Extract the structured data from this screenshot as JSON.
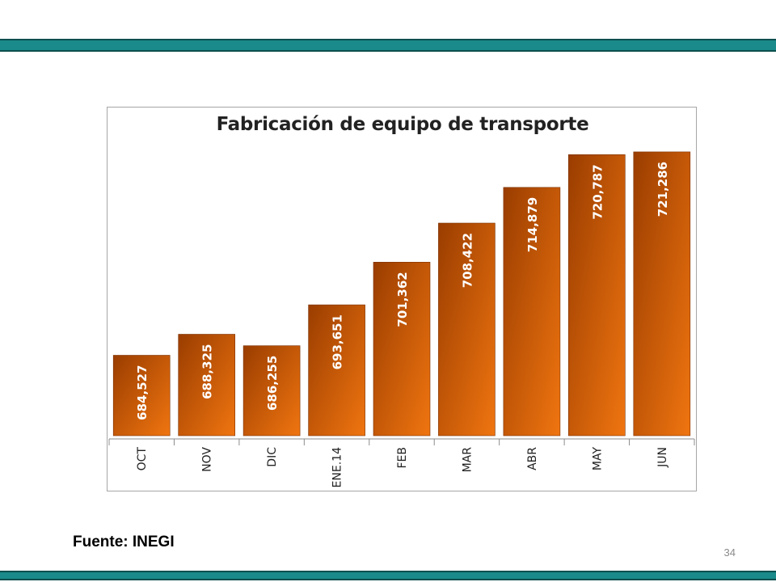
{
  "slide": {
    "source": "Fuente: INEGI",
    "page_number": "34",
    "band_color": "#1a8a8a"
  },
  "chart_data": {
    "type": "bar",
    "title": "Fabricación de equipo de transporte",
    "categories": [
      "OCT",
      "NOV",
      "DIC",
      "ENE.14",
      "FEB",
      "MAR",
      "ABR",
      "MAY",
      "JUN"
    ],
    "values": [
      684527,
      688325,
      686255,
      693651,
      701362,
      708422,
      714879,
      720787,
      721286
    ],
    "value_labels": [
      "684,527",
      "688,325",
      "686,255",
      "693,651",
      "701,362",
      "708,422",
      "714,879",
      "720,787",
      "721,286"
    ],
    "xlabel": "",
    "ylabel": "",
    "ylim": [
      670000,
      722000
    ],
    "grid": false,
    "legend": "none",
    "bar_color_dark": "#9a3d00",
    "bar_color_light": "#f07510"
  }
}
